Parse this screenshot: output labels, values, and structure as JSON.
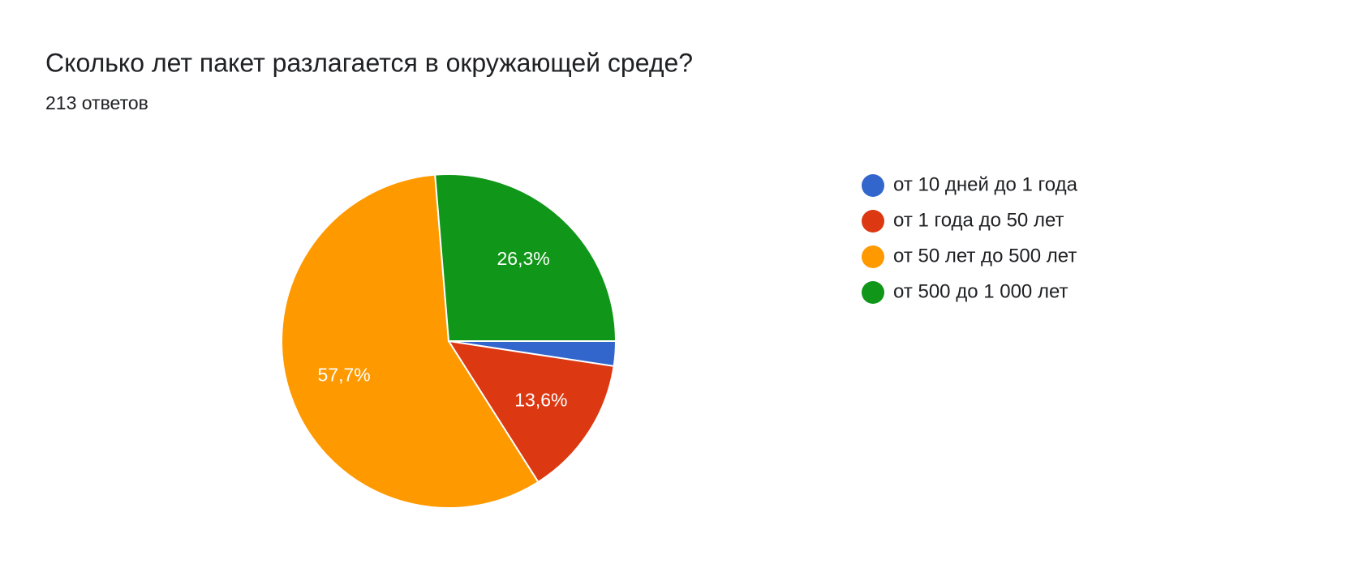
{
  "chart_data": {
    "type": "pie",
    "title": "Сколько лет пакет разлагается в окружающей среде?",
    "subtitle": "213 ответов",
    "categories": [
      "от 10 дней до 1 года",
      "от 1 года до 50 лет",
      "от 50 лет до 500 лет",
      "от 500 до 1 000 лет"
    ],
    "values": [
      2.4,
      13.6,
      57.7,
      26.3
    ],
    "value_labels": [
      null,
      "13,6%",
      "57,7%",
      "26,3%"
    ],
    "colors": [
      "#3366cc",
      "#dc3912",
      "#ff9900",
      "#109618"
    ],
    "legend": "right"
  }
}
